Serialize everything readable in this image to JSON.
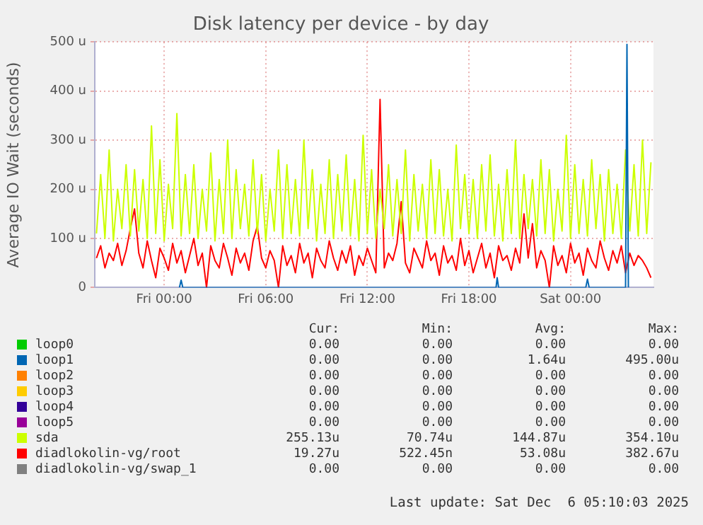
{
  "chart_data": {
    "type": "line",
    "title": "Disk latency per device - by day",
    "ylabel": "Average IO Wait (seconds)",
    "xlim": [
      "2025-12-04T19:54",
      "2025-12-06T04:54"
    ],
    "xticks": [
      {
        "value": "2025-12-05T00:00",
        "label": "Fri 00:00"
      },
      {
        "value": "2025-12-05T06:00",
        "label": "Fri 06:00"
      },
      {
        "value": "2025-12-05T12:00",
        "label": "Fri 12:00"
      },
      {
        "value": "2025-12-05T18:00",
        "label": "Fri 18:00"
      },
      {
        "value": "2025-12-06T00:00",
        "label": "Sat 00:00"
      }
    ],
    "ylim": [
      0,
      500
    ],
    "yticks": [
      {
        "value": 0,
        "label": "0"
      },
      {
        "value": 100,
        "label": "100 u"
      },
      {
        "value": 200,
        "label": "200 u"
      },
      {
        "value": 300,
        "label": "300 u"
      },
      {
        "value": 400,
        "label": "400 u"
      },
      {
        "value": 500,
        "label": "500 u"
      }
    ],
    "grid": true,
    "legend": "bottom",
    "marker": "none",
    "line_style": "solid",
    "x": [
      "2025-12-04T20:00",
      "2025-12-04T20:15",
      "2025-12-04T20:30",
      "2025-12-04T20:45",
      "2025-12-04T21:00",
      "2025-12-04T21:15",
      "2025-12-04T21:30",
      "2025-12-04T21:45",
      "2025-12-04T22:00",
      "2025-12-04T22:15",
      "2025-12-04T22:30",
      "2025-12-04T22:45",
      "2025-12-04T23:00",
      "2025-12-04T23:15",
      "2025-12-04T23:30",
      "2025-12-04T23:45",
      "2025-12-05T00:00",
      "2025-12-05T00:15",
      "2025-12-05T00:30",
      "2025-12-05T00:45",
      "2025-12-05T01:00",
      "2025-12-05T01:15",
      "2025-12-05T01:30",
      "2025-12-05T01:45",
      "2025-12-05T02:00",
      "2025-12-05T02:15",
      "2025-12-05T02:30",
      "2025-12-05T02:45",
      "2025-12-05T03:00",
      "2025-12-05T03:15",
      "2025-12-05T03:30",
      "2025-12-05T03:45",
      "2025-12-05T04:00",
      "2025-12-05T04:15",
      "2025-12-05T04:30",
      "2025-12-05T04:45",
      "2025-12-05T05:00",
      "2025-12-05T05:15",
      "2025-12-05T05:30",
      "2025-12-05T05:45",
      "2025-12-05T06:00",
      "2025-12-05T06:15",
      "2025-12-05T06:30",
      "2025-12-05T06:45",
      "2025-12-05T07:00",
      "2025-12-05T07:15",
      "2025-12-05T07:30",
      "2025-12-05T07:45",
      "2025-12-05T08:00",
      "2025-12-05T08:15",
      "2025-12-05T08:30",
      "2025-12-05T08:45",
      "2025-12-05T09:00",
      "2025-12-05T09:15",
      "2025-12-05T09:30",
      "2025-12-05T09:45",
      "2025-12-05T10:00",
      "2025-12-05T10:15",
      "2025-12-05T10:30",
      "2025-12-05T10:45",
      "2025-12-05T11:00",
      "2025-12-05T11:15",
      "2025-12-05T11:30",
      "2025-12-05T11:45",
      "2025-12-05T12:00",
      "2025-12-05T12:15",
      "2025-12-05T12:30",
      "2025-12-05T12:45",
      "2025-12-05T13:00",
      "2025-12-05T13:15",
      "2025-12-05T13:30",
      "2025-12-05T13:45",
      "2025-12-05T14:00",
      "2025-12-05T14:15",
      "2025-12-05T14:30",
      "2025-12-05T14:45",
      "2025-12-05T15:00",
      "2025-12-05T15:15",
      "2025-12-05T15:30",
      "2025-12-05T15:45",
      "2025-12-05T16:00",
      "2025-12-05T16:15",
      "2025-12-05T16:30",
      "2025-12-05T16:45",
      "2025-12-05T17:00",
      "2025-12-05T17:15",
      "2025-12-05T17:30",
      "2025-12-05T17:45",
      "2025-12-05T18:00",
      "2025-12-05T18:15",
      "2025-12-05T18:30",
      "2025-12-05T18:45",
      "2025-12-05T19:00",
      "2025-12-05T19:15",
      "2025-12-05T19:30",
      "2025-12-05T19:45",
      "2025-12-05T20:00",
      "2025-12-05T20:15",
      "2025-12-05T20:30",
      "2025-12-05T20:45",
      "2025-12-05T21:00",
      "2025-12-05T21:15",
      "2025-12-05T21:30",
      "2025-12-05T21:45",
      "2025-12-05T22:00",
      "2025-12-05T22:15",
      "2025-12-05T22:30",
      "2025-12-05T22:45",
      "2025-12-05T23:00",
      "2025-12-05T23:15",
      "2025-12-05T23:30",
      "2025-12-05T23:45",
      "2025-12-06T00:00",
      "2025-12-06T00:15",
      "2025-12-06T00:30",
      "2025-12-06T00:45",
      "2025-12-06T01:00",
      "2025-12-06T01:15",
      "2025-12-06T01:30",
      "2025-12-06T01:45",
      "2025-12-06T02:00",
      "2025-12-06T02:15",
      "2025-12-06T02:30",
      "2025-12-06T02:45",
      "2025-12-06T03:00",
      "2025-12-06T03:15",
      "2025-12-06T03:30",
      "2025-12-06T03:45",
      "2025-12-06T04:00",
      "2025-12-06T04:15",
      "2025-12-06T04:30",
      "2025-12-06T04:45"
    ],
    "series": [
      {
        "name": "loop0",
        "color": "#00cc00",
        "values": [
          null,
          null,
          null,
          null,
          null,
          null,
          null,
          null,
          null,
          null,
          null,
          null,
          null,
          null,
          null,
          null,
          null,
          null,
          null,
          null,
          null,
          null,
          null,
          null,
          null,
          null,
          null,
          null,
          null,
          null,
          null,
          null,
          null,
          null,
          null,
          null,
          null,
          null,
          null,
          null,
          null,
          null,
          null,
          null,
          null,
          null,
          null,
          null,
          null,
          null,
          null,
          null,
          null,
          null,
          null,
          null,
          null,
          null,
          null,
          null,
          null,
          null,
          null,
          null,
          null,
          null,
          null,
          null,
          null,
          null,
          null,
          null,
          null,
          null,
          null,
          null,
          null,
          null,
          null,
          null,
          null,
          null,
          null,
          null,
          null,
          null,
          null,
          null,
          null,
          null,
          null,
          null,
          null,
          null,
          null,
          null,
          null,
          null,
          null,
          null,
          null,
          null,
          null,
          null,
          null,
          null,
          null,
          null,
          null,
          null,
          null,
          null,
          null,
          null,
          null,
          null,
          null,
          null,
          null,
          null,
          null,
          null,
          null,
          null,
          null,
          null,
          null,
          null,
          null,
          null,
          null,
          null
        ]
      },
      {
        "name": "loop1",
        "color": "#0066b3",
        "x": [
          "2025-12-05T00:54",
          "2025-12-05T01:00",
          "2025-12-05T01:06",
          "2025-12-05T19:36",
          "2025-12-05T19:40",
          "2025-12-05T19:45",
          "2025-12-06T00:54",
          "2025-12-06T01:00",
          "2025-12-06T01:06",
          "2025-12-06T03:15",
          "2025-12-06T03:20",
          "2025-12-06T03:25"
        ],
        "values": [
          0,
          15,
          0,
          0,
          20,
          0,
          0,
          17,
          0,
          0,
          495,
          0
        ]
      },
      {
        "name": "loop2",
        "color": "#ff8000",
        "values": [
          null,
          null,
          null,
          null,
          null,
          null,
          null,
          null,
          null,
          null,
          null,
          null,
          null,
          null,
          null,
          null,
          null,
          null,
          null,
          null,
          null,
          null,
          null,
          null,
          null,
          null,
          null,
          null,
          null,
          null,
          null,
          null,
          null,
          null,
          null,
          null,
          null,
          null,
          null,
          null,
          null,
          null,
          null,
          null,
          null,
          null,
          null,
          null,
          null,
          null,
          null,
          null,
          null,
          null,
          null,
          null,
          null,
          null,
          null,
          null,
          null,
          null,
          null,
          null,
          null,
          null,
          null,
          null,
          null,
          null,
          null,
          null,
          null,
          null,
          null,
          null,
          null,
          null,
          null,
          null,
          null,
          null,
          null,
          null,
          null,
          null,
          null,
          null,
          null,
          null,
          null,
          null,
          null,
          null,
          null,
          null,
          null,
          null,
          null,
          null,
          null,
          null,
          null,
          null,
          null,
          null,
          null,
          null,
          null,
          null,
          null,
          null,
          null,
          null,
          null,
          null,
          null,
          null,
          null,
          null,
          null,
          null,
          null,
          null,
          null,
          null,
          null,
          null,
          null,
          null,
          null,
          null
        ]
      },
      {
        "name": "loop3",
        "color": "#ffcc00",
        "values": [
          null,
          null,
          null,
          null,
          null,
          null,
          null,
          null,
          null,
          null,
          null,
          null,
          null,
          null,
          null,
          null,
          null,
          null,
          null,
          null,
          null,
          null,
          null,
          null,
          null,
          null,
          null,
          null,
          null,
          null,
          null,
          null,
          null,
          null,
          null,
          null,
          null,
          null,
          null,
          null,
          null,
          null,
          null,
          null,
          null,
          null,
          null,
          null,
          null,
          null,
          null,
          null,
          null,
          null,
          null,
          null,
          null,
          null,
          null,
          null,
          null,
          null,
          null,
          null,
          null,
          null,
          null,
          null,
          null,
          null,
          null,
          null,
          null,
          null,
          null,
          null,
          null,
          null,
          null,
          null,
          null,
          null,
          null,
          null,
          null,
          null,
          null,
          null,
          null,
          null,
          null,
          null,
          null,
          null,
          null,
          null,
          null,
          null,
          null,
          null,
          null,
          null,
          null,
          null,
          null,
          null,
          null,
          null,
          null,
          null,
          null,
          null,
          null,
          null,
          null,
          null,
          null,
          null,
          null,
          null,
          null,
          null,
          null,
          null,
          null,
          null,
          null,
          null,
          null,
          null,
          null,
          null
        ]
      },
      {
        "name": "loop4",
        "color": "#330099",
        "values": [
          null,
          null,
          null,
          null,
          null,
          null,
          null,
          null,
          null,
          null,
          null,
          null,
          null,
          null,
          null,
          null,
          null,
          null,
          null,
          null,
          null,
          null,
          null,
          null,
          null,
          null,
          null,
          null,
          null,
          null,
          null,
          null,
          null,
          null,
          null,
          null,
          null,
          null,
          null,
          null,
          null,
          null,
          null,
          null,
          null,
          null,
          null,
          null,
          null,
          null,
          null,
          null,
          null,
          null,
          null,
          null,
          null,
          null,
          null,
          null,
          null,
          null,
          null,
          null,
          null,
          null,
          null,
          null,
          null,
          null,
          null,
          null,
          null,
          null,
          null,
          null,
          null,
          null,
          null,
          null,
          null,
          null,
          null,
          null,
          null,
          null,
          null,
          null,
          null,
          null,
          null,
          null,
          null,
          null,
          null,
          null,
          null,
          null,
          null,
          null,
          null,
          null,
          null,
          null,
          null,
          null,
          null,
          null,
          null,
          null,
          null,
          null,
          null,
          null,
          null,
          null,
          null,
          null,
          null,
          null,
          null,
          null,
          null,
          null,
          null,
          null,
          null,
          null,
          null,
          null,
          null,
          null
        ]
      },
      {
        "name": "loop5",
        "color": "#990099",
        "values": [
          null,
          null,
          null,
          null,
          null,
          null,
          null,
          null,
          null,
          null,
          null,
          null,
          null,
          null,
          null,
          null,
          null,
          null,
          null,
          null,
          null,
          null,
          null,
          null,
          null,
          null,
          null,
          null,
          null,
          null,
          null,
          null,
          null,
          null,
          null,
          null,
          null,
          null,
          null,
          null,
          null,
          null,
          null,
          null,
          null,
          null,
          null,
          null,
          null,
          null,
          null,
          null,
          null,
          null,
          null,
          null,
          null,
          null,
          null,
          null,
          null,
          null,
          null,
          null,
          null,
          null,
          null,
          null,
          null,
          null,
          null,
          null,
          null,
          null,
          null,
          null,
          null,
          null,
          null,
          null,
          null,
          null,
          null,
          null,
          null,
          null,
          null,
          null,
          null,
          null,
          null,
          null,
          null,
          null,
          null,
          null,
          null,
          null,
          null,
          null,
          null,
          null,
          null,
          null,
          null,
          null,
          null,
          null,
          null,
          null,
          null,
          null,
          null,
          null,
          null,
          null,
          null,
          null,
          null,
          null,
          null,
          null,
          null,
          null,
          null,
          null,
          null,
          null,
          null,
          null,
          null,
          null
        ]
      },
      {
        "name": "sda",
        "color": "#ccff00",
        "values": [
          110,
          230,
          100,
          280,
          95,
          200,
          120,
          250,
          105,
          240,
          115,
          220,
          100,
          329,
          110,
          260,
          95,
          210,
          120,
          354,
          105,
          230,
          110,
          250,
          100,
          200,
          115,
          274,
          95,
          220,
          110,
          300,
          100,
          240,
          120,
          210,
          105,
          260,
          110,
          230,
          95,
          200,
          115,
          280,
          100,
          250,
          110,
          220,
          105,
          300,
          120,
          240,
          95,
          210,
          110,
          260,
          100,
          230,
          115,
          270,
          105,
          220,
          95,
          310,
          110,
          240,
          100,
          200,
          120,
          250,
          105,
          220,
          110,
          280,
          95,
          230,
          115,
          210,
          100,
          260,
          110,
          240,
          105,
          200,
          95,
          290,
          120,
          230,
          110,
          220,
          100,
          250,
          115,
          270,
          105,
          210,
          95,
          240,
          110,
          300,
          100,
          230,
          120,
          220,
          105,
          260,
          110,
          240,
          95,
          200,
          115,
          310,
          100,
          250,
          110,
          220,
          105,
          260,
          120,
          230,
          95,
          240,
          110,
          210,
          100,
          280,
          115,
          250,
          105,
          300,
          110,
          255
        ]
      },
      {
        "name": "diadlokolin-vg/root",
        "color": "#ff0000",
        "values": [
          60,
          85,
          40,
          70,
          55,
          90,
          45,
          75,
          120,
          160,
          70,
          40,
          95,
          55,
          20,
          80,
          60,
          35,
          90,
          50,
          75,
          30,
          65,
          100,
          45,
          70,
          0,
          85,
          55,
          40,
          90,
          60,
          25,
          80,
          50,
          70,
          35,
          95,
          125,
          60,
          40,
          75,
          55,
          0,
          85,
          45,
          65,
          30,
          90,
          50,
          70,
          20,
          80,
          55,
          40,
          95,
          60,
          35,
          75,
          50,
          85,
          25,
          65,
          45,
          80,
          55,
          30,
          383,
          40,
          70,
          55,
          90,
          175,
          50,
          30,
          80,
          60,
          40,
          95,
          55,
          70,
          25,
          85,
          50,
          65,
          35,
          100,
          45,
          75,
          30,
          60,
          90,
          40,
          70,
          20,
          85,
          55,
          65,
          35,
          80,
          50,
          150,
          60,
          130,
          40,
          75,
          55,
          0,
          85,
          45,
          65,
          30,
          90,
          50,
          70,
          25,
          80,
          55,
          40,
          95,
          60,
          35,
          75,
          50,
          85,
          30,
          70,
          45,
          65,
          55,
          40,
          20
        ]
      },
      {
        "name": "diadlokolin-vg/swap_1",
        "color": "#808080",
        "values": [
          null,
          null,
          null,
          null,
          null,
          null,
          null,
          null,
          null,
          null,
          null,
          null,
          null,
          null,
          null,
          null,
          null,
          null,
          null,
          null,
          null,
          null,
          null,
          null,
          null,
          null,
          null,
          null,
          null,
          null,
          null,
          null,
          null,
          null,
          null,
          null,
          null,
          null,
          null,
          null,
          null,
          null,
          null,
          null,
          null,
          null,
          null,
          null,
          null,
          null,
          null,
          null,
          null,
          null,
          null,
          null,
          null,
          null,
          null,
          null,
          null,
          null,
          null,
          null,
          null,
          null,
          null,
          null,
          null,
          null,
          null,
          null,
          null,
          null,
          null,
          null,
          null,
          null,
          null,
          null,
          null,
          null,
          null,
          null,
          null,
          null,
          null,
          null,
          null,
          null,
          null,
          null,
          null,
          null,
          null,
          null,
          null,
          null,
          null,
          null,
          null,
          null,
          null,
          null,
          null,
          null,
          null,
          null,
          null,
          null,
          null,
          null,
          null,
          null,
          null,
          null,
          null,
          null,
          null,
          null,
          null,
          null,
          null,
          null,
          null,
          null,
          null,
          null,
          null,
          null,
          null,
          null
        ]
      }
    ],
    "annotations": [
      "Cur:",
      "Min:",
      "Avg:",
      "Max:",
      "0.00",
      "0.00",
      "0.00",
      "0.00",
      "0.00",
      "0.00",
      "1.64u",
      "495.00u",
      "0.00",
      "0.00",
      "0.00",
      "0.00",
      "0.00",
      "0.00",
      "0.00",
      "0.00",
      "0.00",
      "0.00",
      "0.00",
      "0.00",
      "0.00",
      "0.00",
      "0.00",
      "0.00",
      "255.13u",
      "70.74u",
      "144.87u",
      "354.10u",
      "19.27u",
      "522.45n",
      "53.08u",
      "382.67u",
      "0.00",
      "0.00",
      "0.00",
      "0.00",
      "Last update: Sat Dec  6 05:10:03 2025"
    ]
  }
}
